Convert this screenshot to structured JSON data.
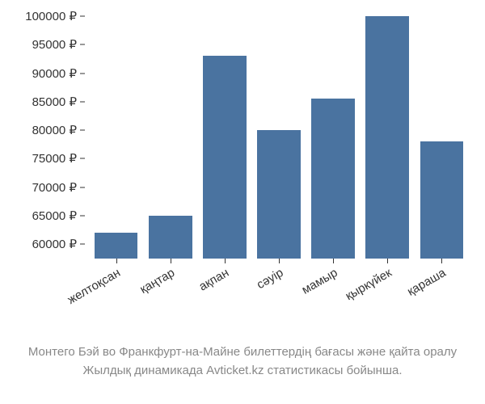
{
  "chart": {
    "type": "bar",
    "categories": [
      "желтоқсан",
      "қаңтар",
      "ақпан",
      "сәуір",
      "мамыр",
      "қыркүйек",
      "қараша"
    ],
    "values": [
      62000,
      65000,
      93000,
      80000,
      85500,
      100000,
      78000
    ],
    "bar_color": "#4a73a0",
    "background_color": "#ffffff",
    "ylim_min": 57500,
    "ylim_max": 100000,
    "ytick_min": 60000,
    "ytick_max": 100000,
    "ytick_step": 5000,
    "currency_symbol": "₽",
    "axis_font_size": 15,
    "axis_text_color": "#333333",
    "x_label_rotation": -30
  },
  "caption": {
    "line1": "Монтего Бэй во Франкфурт-на-Майне билеттердің бағасы және қайта оралу",
    "line2": "Жылдық динамикада Avticket.kz статистикасы бойынша.",
    "font_size": 15,
    "color": "#888888"
  }
}
